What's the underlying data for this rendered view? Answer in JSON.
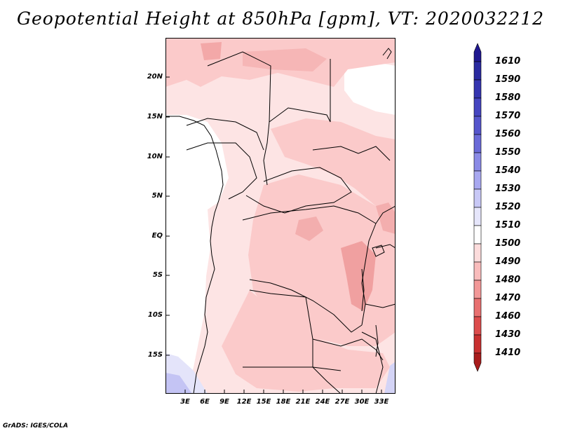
{
  "title": "Geopotential Height at 850hPa [gpm], VT: 2020032212",
  "footer": "GrADS: IGES/COLA",
  "map": {
    "lat_labels": [
      "20N",
      "15N",
      "10N",
      "5N",
      "EQ",
      "5S",
      "10S",
      "15S"
    ],
    "lon_labels": [
      "3E",
      "6E",
      "9E",
      "12E",
      "15E",
      "18E",
      "21E",
      "24E",
      "27E",
      "30E",
      "33E"
    ]
  },
  "colorbar": {
    "levels": [
      "1610",
      "1590",
      "1580",
      "1570",
      "1560",
      "1550",
      "1540",
      "1530",
      "1520",
      "1510",
      "1500",
      "1490",
      "1480",
      "1470",
      "1460",
      "1430",
      "1410"
    ],
    "colors": [
      "#201890",
      "#2a2aa0",
      "#3535b0",
      "#4545c0",
      "#5555cc",
      "#6a6ad8",
      "#8a8ae6",
      "#a8a8f0",
      "#c8c8f6",
      "#e6e6fb",
      "#ffffff",
      "#fcdcdc",
      "#f9bcbc",
      "#f29898",
      "#e87070",
      "#dc4c4c",
      "#c83030",
      "#a81c1c"
    ]
  }
}
